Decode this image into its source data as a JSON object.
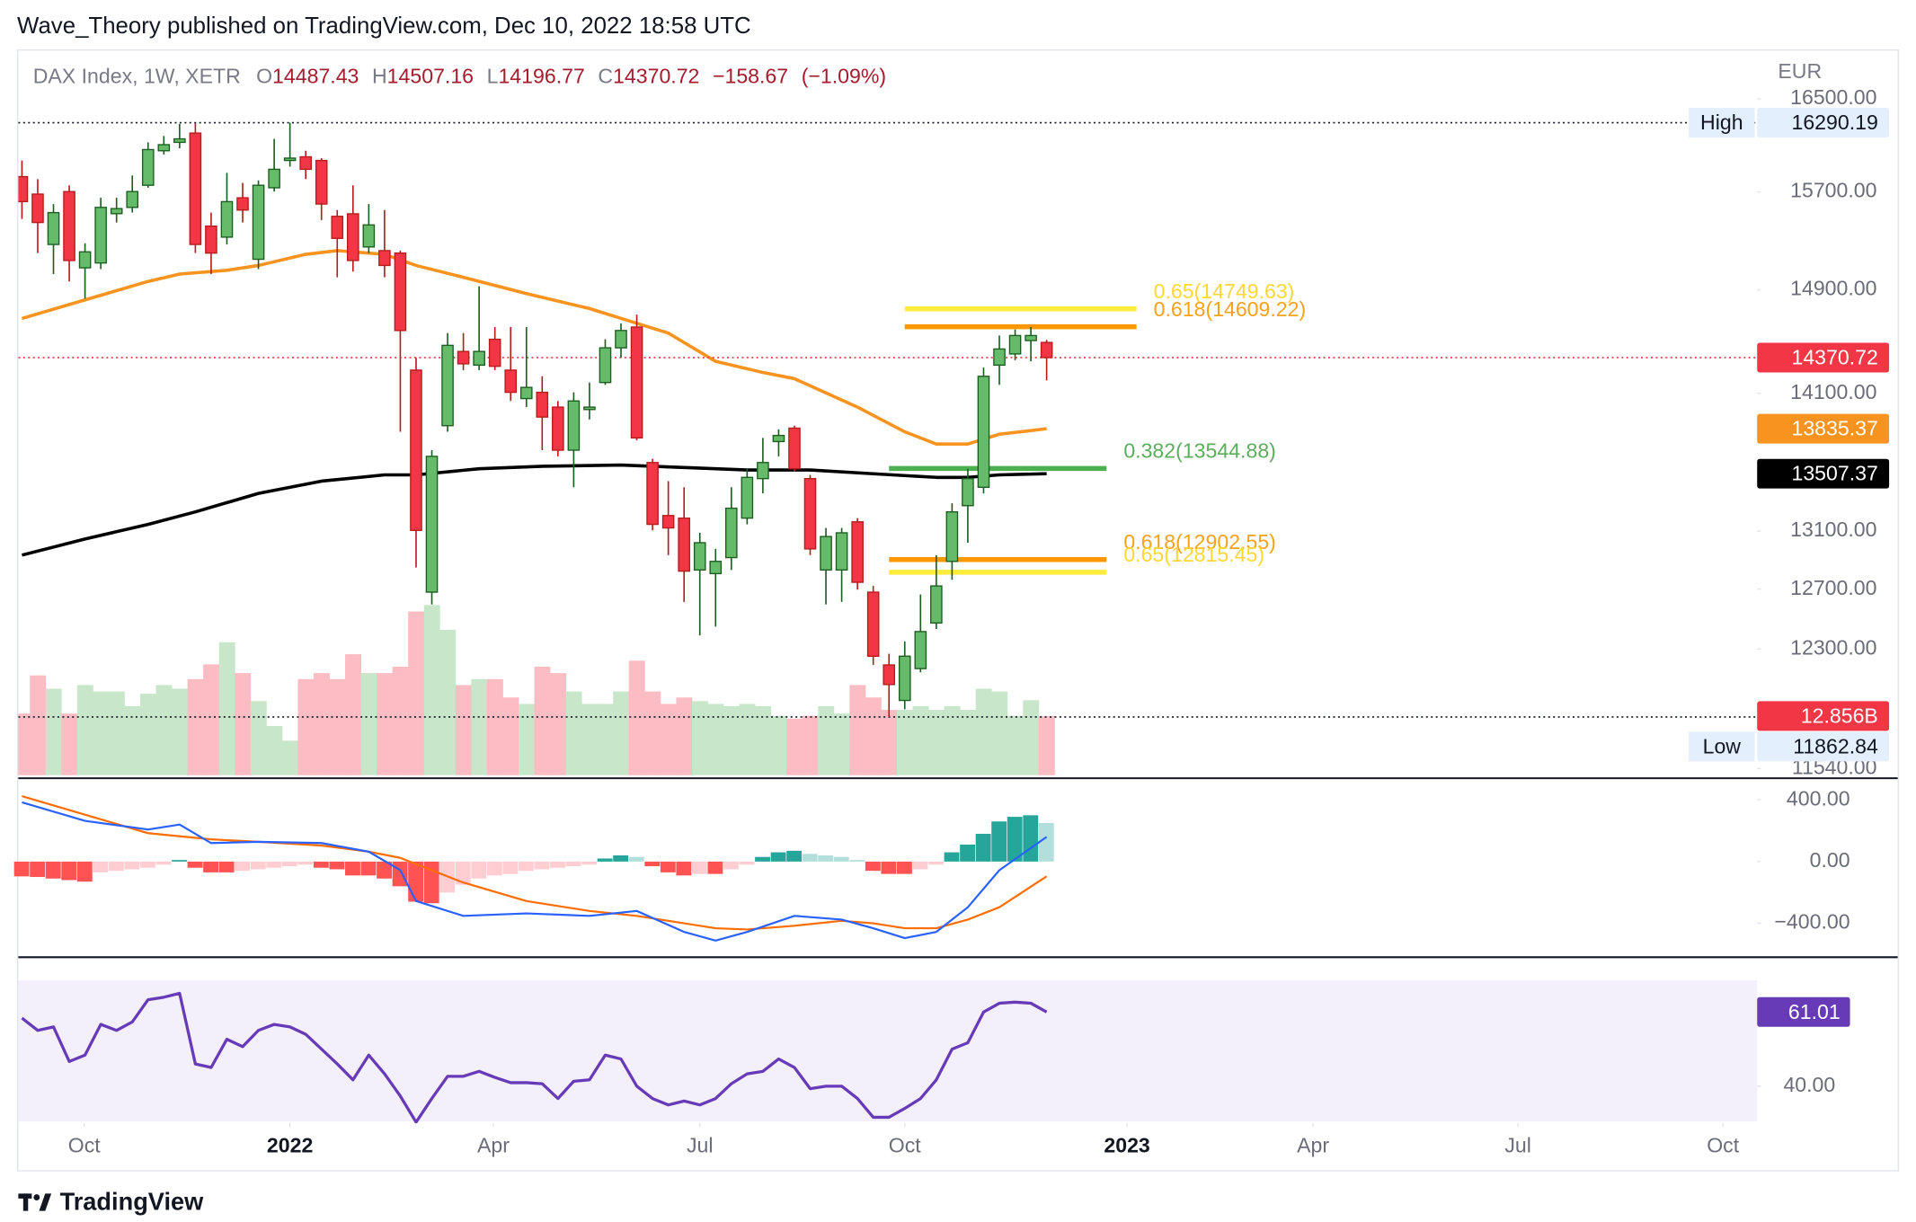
{
  "chart_data": {
    "type": "candlestick",
    "publisher": "Wave_Theory published on TradingView.com, Dec 10, 2022 18:58 UTC",
    "title": "DAX Index, 1W, XETR",
    "currency": "EUR",
    "footer": "TradingView",
    "log": true,
    "ylim": [
      11485,
      16940
    ],
    "yticks": [
      {
        "value": 16500,
        "label": "16500.00"
      },
      {
        "value": 15700,
        "label": "15700.00"
      },
      {
        "value": 14900,
        "label": "14900.00"
      },
      {
        "value": 14100,
        "label": "14100.00"
      },
      {
        "value": 13100,
        "label": "13100.00"
      },
      {
        "value": 12700,
        "label": "12700.00"
      },
      {
        "value": 12300,
        "label": "12300.00"
      },
      {
        "value": 11540,
        "label": "11540.00"
      }
    ],
    "xlim": [
      -0.23,
      110.07
    ],
    "xticks": [
      {
        "value": 3.95,
        "label": "Oct"
      },
      {
        "value": 17,
        "label": "2022"
      },
      {
        "value": 29.9,
        "label": "Apr"
      },
      {
        "value": 43,
        "label": "Jul"
      },
      {
        "value": 56,
        "label": "Oct"
      },
      {
        "value": 70.1,
        "label": "2023"
      },
      {
        "value": 81.9,
        "label": "Apr"
      },
      {
        "value": 94.9,
        "label": "Jul"
      },
      {
        "value": 107.9,
        "label": "Oct"
      }
    ],
    "up_color": "#66bb6a",
    "down_color": "#f23645",
    "ohlc_keys": [
      "O",
      "H",
      "L",
      "C"
    ],
    "change": {
      "value": -158.67,
      "label": "−158.67"
    },
    "change_pct": {
      "value": -1.09,
      "label": "(−1.09%)"
    },
    "ohlc": {
      "open": [
        15828,
        15681,
        15265,
        15702,
        15076,
        15115,
        15518,
        15570,
        15755,
        16048,
        16120,
        16200,
        15415,
        15325,
        15650,
        15145,
        15734,
        15965,
        15996,
        15965,
        15496,
        15517,
        15245,
        15215,
        15195,
        14275,
        12680,
        13858,
        14418,
        14313,
        14512,
        14275,
        14060,
        14107,
        13996,
        13678,
        13978,
        14181,
        14446,
        14607,
        13588,
        13209,
        13191,
        12831,
        12806,
        12916,
        13191,
        13472,
        13741,
        13840,
        13472,
        12831,
        12831,
        13165,
        12680,
        12197,
        11968,
        12173,
        12473,
        12890,
        13279,
        13410,
        14313,
        14399,
        14502,
        14487.43
      ],
      "high": [
        15965,
        15807,
        15598,
        15755,
        15275,
        15650,
        15650,
        15838,
        16120,
        16175,
        16280,
        16283,
        15527,
        15860,
        15775,
        15796,
        16150,
        16290.19,
        16048,
        15985,
        15548,
        15755,
        15598,
        15548,
        15215,
        14370,
        13678,
        14560,
        14560,
        14928,
        14607,
        14607,
        14607,
        14228,
        14042,
        14107,
        14181,
        14512,
        14636,
        14704,
        13615,
        13454,
        13410,
        13088,
        12976,
        13410,
        13543,
        13768,
        13831,
        13858,
        13499,
        13122,
        13122,
        13191,
        12722,
        12270,
        12351,
        12664,
        12933,
        13296,
        13543,
        14294,
        14541,
        14588,
        14607,
        14507.16
      ],
      "low": [
        15475,
        15195,
        15026,
        14967,
        14830,
        15066,
        15445,
        15527,
        15734,
        16016,
        16069,
        15195,
        15026,
        15265,
        15445,
        15066,
        15702,
        15912,
        15807,
        15465,
        15000,
        15046,
        15195,
        15000,
        13813,
        12848,
        12597,
        13813,
        14275,
        14275,
        14275,
        14042,
        13996,
        13678,
        13633,
        13410,
        13904,
        14163,
        14370,
        13750,
        13105,
        12933,
        12614,
        12391,
        12449,
        12831,
        13147,
        13366,
        13633,
        13525,
        12933,
        12597,
        12614,
        12697,
        12197,
        11862.84,
        11912,
        12149,
        12433,
        12764,
        13019,
        13366,
        14163,
        14351,
        14342,
        14196.77
      ],
      "close": [
        15618,
        15445,
        15527,
        15135,
        15205,
        15570,
        15560,
        15702,
        16058,
        16100,
        16150,
        15265,
        15195,
        15618,
        15548,
        15755,
        15890,
        15985,
        15890,
        15598,
        15315,
        15135,
        15425,
        15095,
        14580,
        13105,
        13633,
        14465,
        14323,
        14418,
        14304,
        14107,
        14144,
        13922,
        13678,
        14042,
        13996,
        14446,
        14580,
        13768,
        13147,
        13122,
        12823,
        13019,
        12890,
        13261,
        13481,
        13588,
        13786,
        13543,
        12976,
        13062,
        13088,
        12747,
        12254,
        12070,
        12254,
        12416,
        12722,
        13235,
        13472,
        14228,
        14437,
        14541,
        14541,
        14370.72
      ]
    },
    "volume": [
      13.4,
      21.7,
      18.8,
      13.4,
      19.6,
      18.2,
      18.2,
      15,
      17.7,
      19.6,
      18.8,
      20.9,
      24.1,
      28.9,
      22.2,
      16.1,
      10.7,
      7.5,
      20.9,
      22.2,
      20.9,
      26.3,
      22.2,
      22.2,
      23.6,
      35.6,
      37,
      31.6,
      19.6,
      20.9,
      20.9,
      16.9,
      15.5,
      23.6,
      22.2,
      18.2,
      15.5,
      15.5,
      18.2,
      24.9,
      18.2,
      15.5,
      16.9,
      16.1,
      15.5,
      15,
      15.5,
      15,
      12.9,
      12.3,
      12.9,
      15,
      13.4,
      19.6,
      16.9,
      14.2,
      14.2,
      15,
      14.2,
      15,
      14.2,
      18.8,
      18.2,
      12.9,
      16.3,
      12.856
    ],
    "volume_label": "12.856B",
    "vlim": [
      0,
      40
    ],
    "volume_colors": {
      "up": "#c8e6c9",
      "down": "#fbbcc3"
    },
    "ma": [
      {
        "color": "#f7931e",
        "x": [
          0,
          4,
          8,
          10,
          13,
          15,
          18,
          20,
          23,
          25,
          28,
          32,
          36,
          39,
          41,
          44,
          47,
          49,
          53,
          56,
          58,
          60,
          62,
          65
        ],
        "values": [
          14674,
          14820,
          14967,
          15026,
          15056,
          15095,
          15185,
          15215,
          15185,
          15095,
          15000,
          14870,
          14752,
          14636,
          14560,
          14342,
          14257,
          14210,
          13996,
          13813,
          13723,
          13723,
          13795,
          13835.37
        ]
      },
      {
        "color": "#000000",
        "x": [
          0,
          4,
          8,
          11,
          15,
          19,
          23,
          25,
          29,
          33,
          38,
          42,
          46,
          50,
          54,
          58,
          60,
          62,
          65
        ],
        "values": [
          12933,
          13045,
          13147,
          13235,
          13366,
          13454,
          13499,
          13499,
          13543,
          13561,
          13570,
          13552,
          13534,
          13534,
          13507,
          13481,
          13481,
          13499,
          13507.37
        ]
      }
    ],
    "high_mark": {
      "label": "High",
      "value": 16290.19
    },
    "low_mark": {
      "label": "Low",
      "value": 11862.84
    },
    "levels": [
      {
        "label": "0.65(14749.63)",
        "value": 14749.63,
        "color": "#ffeb3b",
        "text_color": "#fdd835",
        "x": [
          56,
          70.7
        ]
      },
      {
        "label": "0.618(14609.22)",
        "value": 14609.22,
        "color": "#ff9800",
        "text_color": "#f7a21b",
        "x": [
          56,
          70.7
        ]
      },
      {
        "label": "0.382(13544.88)",
        "value": 13544.88,
        "color": "#4caf50",
        "text_color": "#5cad5c",
        "x": [
          55,
          68.8
        ]
      },
      {
        "label": "0.618(12902.55)",
        "value": 12902.55,
        "color": "#ff9800",
        "text_color": "#f7a21b",
        "x": [
          55,
          68.8
        ]
      },
      {
        "label": "0.65(12815.45)",
        "value": 12815.45,
        "color": "#ffeb3b",
        "text_color": "#fdd835",
        "x": [
          55,
          68.8
        ]
      }
    ],
    "macd": {
      "ylim": [
        -616,
        528
      ],
      "yticks": [
        {
          "value": 400,
          "label": "400.00"
        },
        {
          "value": 0,
          "label": "0.00"
        },
        {
          "value": -400,
          "label": "−400.00"
        }
      ],
      "histogram": [
        -96,
        -100,
        -110,
        -120,
        -130,
        -70,
        -60,
        -50,
        -40,
        -20,
        10,
        -40,
        -70,
        -70,
        -60,
        -50,
        -40,
        -30,
        -20,
        -40,
        -50,
        -90,
        -90,
        -110,
        -160,
        -260,
        -270,
        -200,
        -150,
        -110,
        -90,
        -80,
        -60,
        -50,
        -40,
        -30,
        -20,
        20,
        40,
        30,
        -30,
        -70,
        -90,
        -80,
        -80,
        -50,
        -20,
        30,
        60,
        70,
        50,
        40,
        30,
        10,
        -60,
        -80,
        -80,
        -50,
        -20,
        60,
        110,
        180,
        260,
        290,
        300,
        250
      ],
      "histogram_colors": {
        "pos_up": "#26a69a",
        "pos_down": "#b2dfdb",
        "neg_up": "#ffcdd2",
        "neg_down": "#ff5252"
      },
      "macd": {
        "color": "#2962ff",
        "x": [
          0,
          4,
          8,
          10,
          12,
          15,
          19,
          22,
          24,
          25,
          28,
          32,
          36,
          39,
          42,
          44,
          46,
          49,
          52,
          54,
          56,
          58,
          60,
          62,
          65
        ],
        "values": [
          384,
          264,
          208,
          240,
          120,
          128,
          120,
          64,
          -56,
          -256,
          -352,
          -336,
          -352,
          -320,
          -456,
          -512,
          -456,
          -352,
          -376,
          -432,
          -496,
          -456,
          -296,
          -56,
          160
        ]
      },
      "signal": {
        "color": "#ff6d00",
        "x": [
          0,
          4,
          8,
          12,
          15,
          19,
          22,
          24,
          25,
          28,
          32,
          36,
          39,
          42,
          44,
          46,
          49,
          52,
          54,
          56,
          58,
          60,
          62,
          65
        ],
        "values": [
          424,
          304,
          184,
          144,
          128,
          104,
          64,
          24,
          -16,
          -136,
          -256,
          -320,
          -352,
          -400,
          -432,
          -440,
          -416,
          -384,
          -400,
          -432,
          -432,
          -376,
          -296,
          -96
        ]
      }
    },
    "rsi": {
      "ylim": [
        29.5,
        76
      ],
      "yticks": [
        {
          "value": 40,
          "label": "40.00"
        }
      ],
      "band": [
        30,
        70
      ],
      "color": "#673ab7",
      "values": [
        59.3,
        55.8,
        56.8,
        47,
        48.8,
        57.5,
        55.8,
        58.2,
        64.5,
        65.2,
        66.3,
        46.3,
        45.3,
        53.3,
        51.2,
        55.8,
        57.5,
        56.8,
        54.7,
        50.5,
        46.3,
        41.8,
        48.8,
        43.5,
        37.2,
        29.8,
        36.5,
        42.8,
        42.8,
        44.2,
        42.5,
        41,
        41,
        40.7,
        36.5,
        41.4,
        41.8,
        48.8,
        47.7,
        40,
        36.5,
        34.7,
        35.8,
        34.7,
        36.5,
        40.7,
        43.5,
        44.2,
        47.7,
        45.3,
        39.3,
        40,
        40,
        36.5,
        31.2,
        31.2,
        33.7,
        36.5,
        41.8,
        50.5,
        52.3,
        61,
        63.5,
        63.8,
        63.5,
        61.01
      ]
    }
  }
}
